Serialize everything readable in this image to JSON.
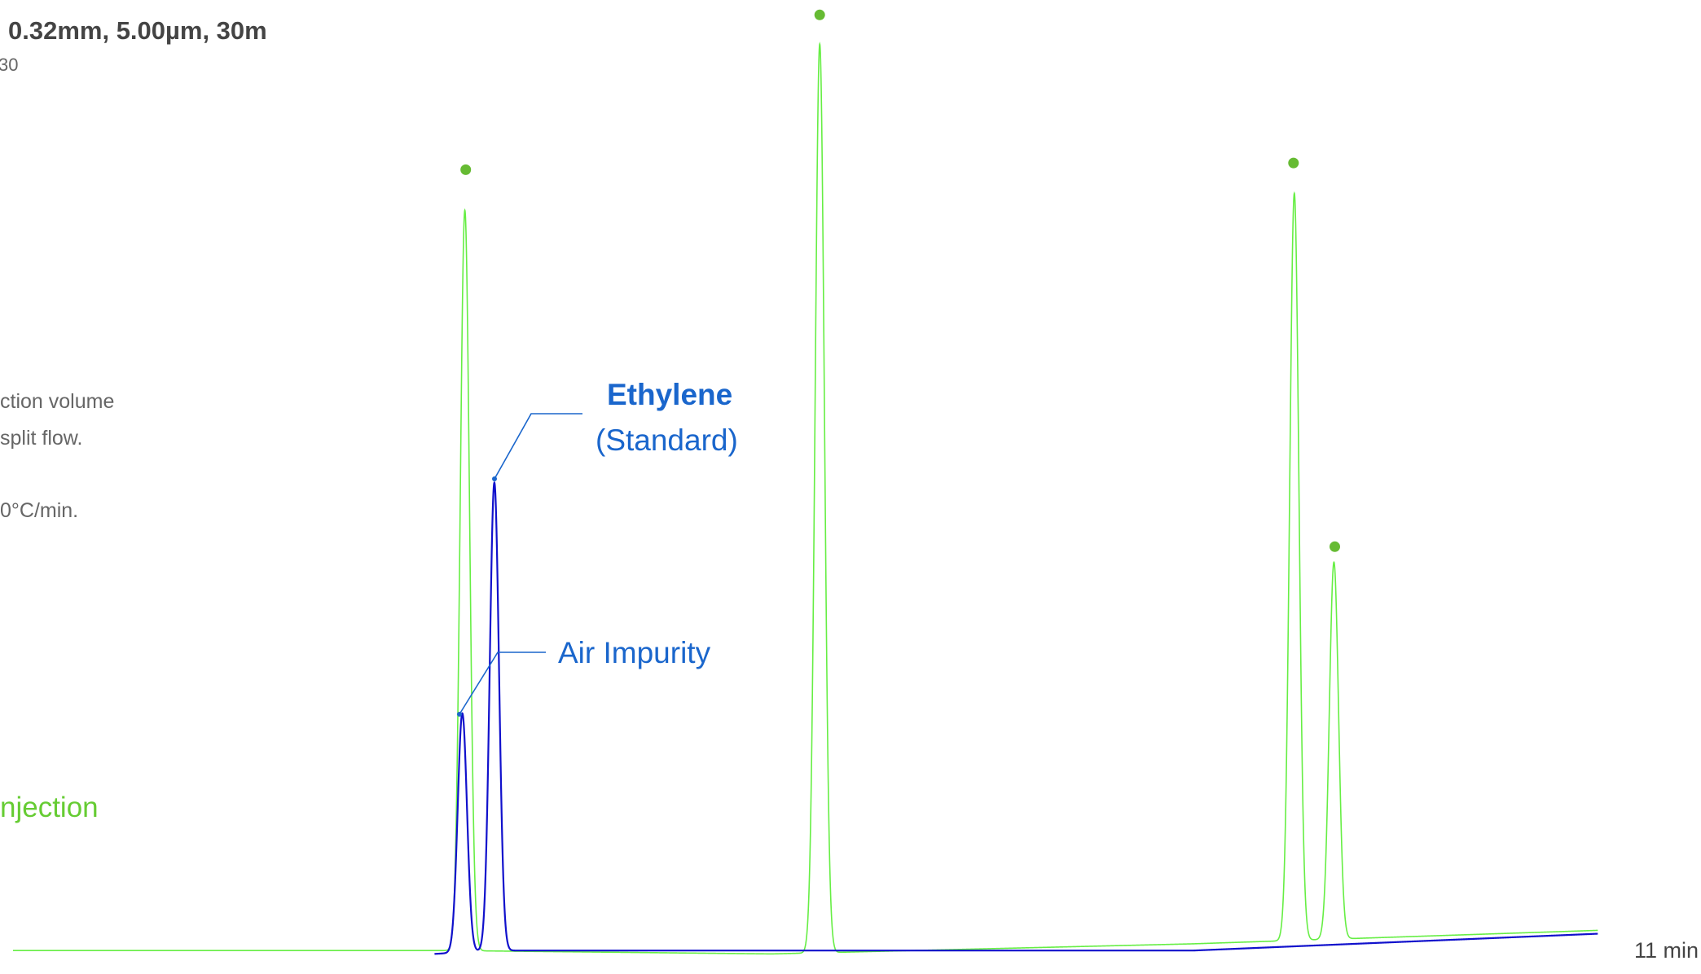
{
  "header": {
    "title": "0.32mm, 5.00µm, 30m",
    "subtitle": "30"
  },
  "notes": {
    "line1": "ction volume",
    "line2": "split flow.",
    "line3": "0°C/min."
  },
  "colors": {
    "green": "#66ee44",
    "green_dot": "#66bb33",
    "blue": "#1111cc",
    "annotation": "#1a66cc",
    "text": "#444444"
  },
  "chart_data": {
    "type": "line",
    "title": "0.32mm, 5.00µm, 30m",
    "xlabel": "11 min",
    "ylabel": "",
    "grid": false,
    "legend": [
      {
        "label": "njection",
        "color": "#66cc33",
        "placement": "left"
      }
    ],
    "series": [
      {
        "color": "#66ee44",
        "baseline": [
          [
            0.0,
            0.0
          ],
          [
            5.2,
            0.0
          ],
          [
            9.0,
            -0.005
          ],
          [
            14.0,
            0.01
          ],
          [
            18.8,
            0.03
          ]
        ],
        "peaks": [
          {
            "x": 5.36,
            "height": 1.1
          },
          {
            "x": 9.57,
            "height": 1.35
          },
          {
            "x": 15.2,
            "height": 1.11
          },
          {
            "x": 15.67,
            "height": 0.56
          }
        ],
        "markers": [
          {
            "x": 5.37,
            "y": 1.16
          },
          {
            "x": 9.57,
            "y": 1.39
          },
          {
            "x": 15.19,
            "y": 1.17
          },
          {
            "x": 15.68,
            "y": 0.6
          }
        ]
      },
      {
        "color": "#1111cc",
        "baseline": [
          [
            5.0,
            -0.005
          ],
          [
            5.7,
            0.0
          ],
          [
            14.0,
            0.0
          ],
          [
            18.8,
            0.025
          ]
        ],
        "peaks": [
          {
            "x": 5.33,
            "height": 0.355
          },
          {
            "x": 5.71,
            "height": 0.695
          }
        ]
      }
    ],
    "annotations": [
      {
        "text": "Ethylene",
        "subtext": "(Standard)",
        "x": 5.75,
        "y": 0.71
      },
      {
        "text": "Air Impurity",
        "x": 5.35,
        "y": 0.37
      }
    ],
    "xlim": [
      0,
      19
    ],
    "ylim": [
      -0.03,
      1.4
    ]
  }
}
